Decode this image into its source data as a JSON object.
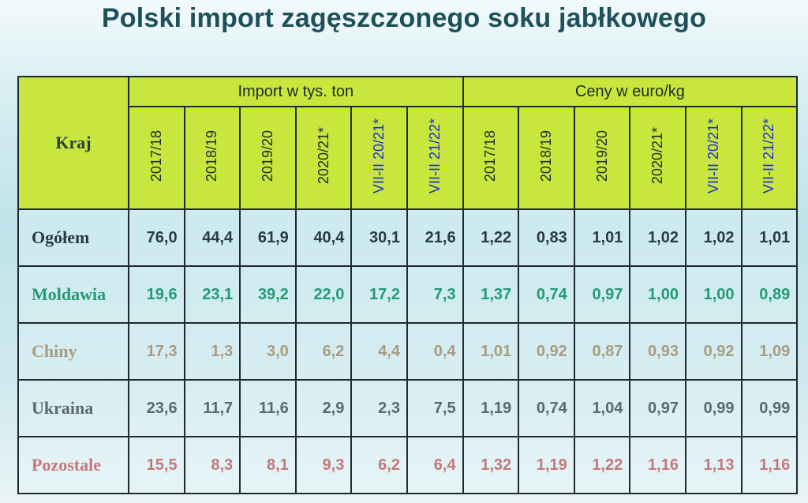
{
  "title": "Polski import zagęszczonego soku jabłkowego",
  "chart_data": {
    "type": "table",
    "title": "Polski import zagęszczonego soku jabłkowego",
    "row_header_label": "Kraj",
    "column_groups": [
      {
        "label": "Import w tys. ton",
        "columns": [
          "2017/18",
          "2018/19",
          "2019/20",
          "2020/21*",
          "VII-II 20/21*",
          "VII-II 21/22*"
        ]
      },
      {
        "label": "Ceny w euro/kg",
        "columns": [
          "2017/18",
          "2018/19",
          "2019/20",
          "2020/21*",
          "VII-II 20/21*",
          "VII-II 21/22*"
        ]
      }
    ],
    "rows": [
      {
        "name": "Ogółem",
        "color": "#2a3a44",
        "import": [
          "76,0",
          "44,4",
          "61,9",
          "40,4",
          "30,1",
          "21,6"
        ],
        "prices": [
          "1,22",
          "0,83",
          "1,01",
          "1,02",
          "1,02",
          "1,01"
        ]
      },
      {
        "name": "Moldawia",
        "color": "#239a72",
        "import": [
          "19,6",
          "23,1",
          "39,2",
          "22,0",
          "17,2",
          "7,3"
        ],
        "prices": [
          "1,37",
          "0,74",
          "0,97",
          "1,00",
          "1,00",
          "0,89"
        ]
      },
      {
        "name": "Chiny",
        "color": "#a89c80",
        "import": [
          "17,3",
          "1,3",
          "3,0",
          "6,2",
          "4,4",
          "0,4"
        ],
        "prices": [
          "1,01",
          "0,92",
          "0,87",
          "0,93",
          "0,92",
          "1,09"
        ]
      },
      {
        "name": "Ukraina",
        "color": "#5a6870",
        "import": [
          "23,6",
          "11,7",
          "11,6",
          "2,9",
          "2,3",
          "7,5"
        ],
        "prices": [
          "1,19",
          "0,74",
          "1,04",
          "0,97",
          "0,99",
          "0,99"
        ]
      },
      {
        "name": "Pozostale",
        "color": "#c4787a",
        "import": [
          "15,5",
          "8,3",
          "8,1",
          "9,3",
          "6,2",
          "6,4"
        ],
        "prices": [
          "1,32",
          "1,19",
          "1,22",
          "1,16",
          "1,13",
          "1,16"
        ]
      }
    ],
    "header_colors": {
      "background": "#c8e63c",
      "current_period_text": "#1d2fd6"
    }
  }
}
